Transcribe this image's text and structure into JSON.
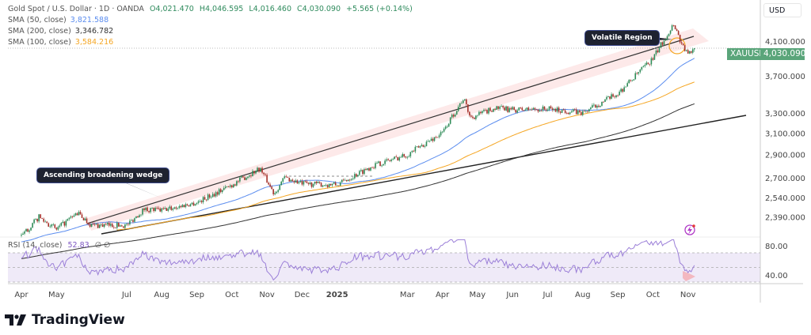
{
  "header": {
    "title": "Gold Spot / U.S. Dollar · 1D · OANDA",
    "open": "O4,021.470",
    "high": "H4,046.595",
    "low": "L4,016.460",
    "close": "C4,030.090",
    "change": "+5.565 (+0.14%)"
  },
  "indicators": [
    {
      "label": "SMA (50, close)",
      "value": "3,821.588",
      "color": "#5b8def"
    },
    {
      "label": "SMA (200, close)",
      "value": "3,346.782",
      "color": "#333333"
    },
    {
      "label": "SMA (100, close)",
      "value": "3,584.216",
      "color": "#f5a623"
    }
  ],
  "rsi": {
    "label": "RSI (14, close)",
    "value": "52.83",
    "extra": "∅ ∅"
  },
  "currency": "USD",
  "symbol_tag": {
    "symbol": "XAUUSD",
    "price": "4,030.090"
  },
  "annotations": {
    "volatile": "Volatile Region",
    "wedge": "Ascending broadening wedge"
  },
  "brand": "TradingView",
  "chart_data": {
    "type": "candlestick",
    "title": "Gold Spot / U.S. Dollar · 1D · OANDA",
    "y_scale": "log",
    "y_ticks": [
      4100,
      3700,
      3300,
      3100,
      2900,
      2700,
      2540,
      2390
    ],
    "y_tick_labels": [
      "4,100.000",
      "3,700.000",
      "3,300.000",
      "3,100.000",
      "2,900.000",
      "2,700.000",
      "2,540.000",
      "2,390.000"
    ],
    "rsi_ticks": [
      80,
      40
    ],
    "rsi_tick_labels": [
      "80.00",
      "40.00"
    ],
    "x_tick_labels": [
      {
        "m": 0,
        "label": "Apr"
      },
      {
        "m": 1,
        "label": "May"
      },
      {
        "m": 3,
        "label": "Jul"
      },
      {
        "m": 4,
        "label": "Aug"
      },
      {
        "m": 5,
        "label": "Sep"
      },
      {
        "m": 6,
        "label": "Oct"
      },
      {
        "m": 7,
        "label": "Nov"
      },
      {
        "m": 8,
        "label": "Dec"
      },
      {
        "m": 9,
        "label": "2025"
      },
      {
        "m": 11,
        "label": "Mar"
      },
      {
        "m": 12,
        "label": "Apr"
      },
      {
        "m": 13,
        "label": "May"
      },
      {
        "m": 14,
        "label": "Jun"
      },
      {
        "m": 15,
        "label": "Jul"
      },
      {
        "m": 16,
        "label": "Aug"
      },
      {
        "m": 17,
        "label": "Sep"
      },
      {
        "m": 18,
        "label": "Oct"
      },
      {
        "m": 19,
        "label": "Nov"
      }
    ],
    "price_path": [
      [
        0,
        2250
      ],
      [
        0.5,
        2390
      ],
      [
        1,
        2300
      ],
      [
        1.6,
        2420
      ],
      [
        2,
        2330
      ],
      [
        3,
        2330
      ],
      [
        3.5,
        2450
      ],
      [
        4,
        2440
      ],
      [
        5,
        2500
      ],
      [
        6,
        2640
      ],
      [
        6.8,
        2780
      ],
      [
        7.2,
        2570
      ],
      [
        7.5,
        2700
      ],
      [
        8,
        2650
      ],
      [
        9,
        2640
      ],
      [
        10,
        2800
      ],
      [
        11,
        2900
      ],
      [
        12,
        3100
      ],
      [
        12.6,
        3450
      ],
      [
        12.8,
        3250
      ],
      [
        13.5,
        3350
      ],
      [
        14,
        3330
      ],
      [
        15,
        3340
      ],
      [
        16,
        3300
      ],
      [
        17,
        3500
      ],
      [
        18,
        3900
      ],
      [
        18.6,
        4350
      ],
      [
        18.8,
        4100
      ],
      [
        19,
        3950
      ],
      [
        19.2,
        4030
      ]
    ],
    "last_price": 4030.09,
    "sma": {
      "50": 3821.588,
      "100": 3584.216,
      "200": 3346.782
    },
    "rsi_last": 52.83
  }
}
